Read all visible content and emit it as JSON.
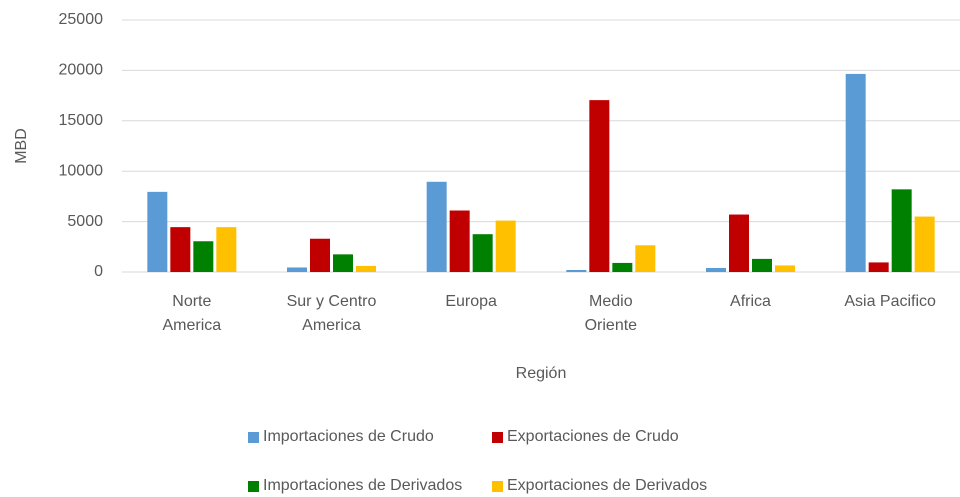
{
  "chart_data": {
    "type": "bar",
    "categories": [
      "Norte\nAmerica",
      "Sur y Centro\nAmerica",
      "Europa",
      "Medio\nOriente",
      "Africa",
      "Asia Pacifico"
    ],
    "series": [
      {
        "name": "Importaciones de Crudo",
        "color": "#5b9bd5",
        "values": [
          7950,
          450,
          8950,
          200,
          400,
          19650
        ]
      },
      {
        "name": "Exportaciones de Crudo",
        "color": "#c00000",
        "values": [
          4450,
          3300,
          6100,
          17050,
          5700,
          950
        ]
      },
      {
        "name": "Importaciones de Derivados",
        "color": "#008000",
        "values": [
          3050,
          1750,
          3750,
          900,
          1300,
          8200
        ]
      },
      {
        "name": "Exportaciones de Derivados",
        "color": "#ffc000",
        "values": [
          4450,
          600,
          5100,
          2650,
          650,
          5500
        ]
      }
    ],
    "x_label": "Región",
    "y_label": "MBD",
    "ylim": [
      0,
      25000
    ],
    "yticks": [
      0,
      5000,
      10000,
      15000,
      20000,
      25000
    ],
    "grid": true,
    "legend": "bottom"
  }
}
